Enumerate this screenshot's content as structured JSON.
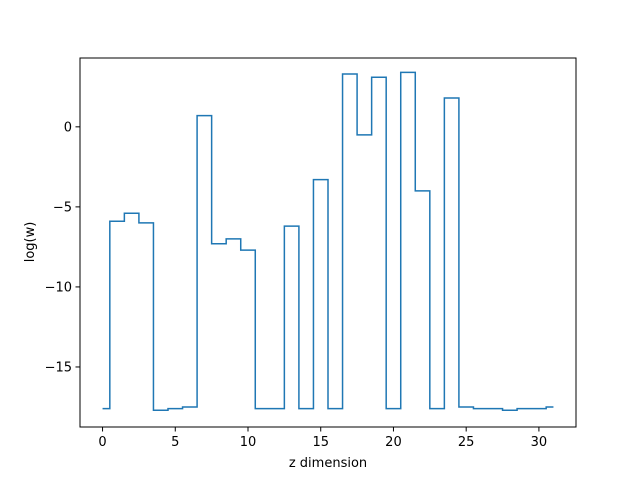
{
  "chart_data": {
    "type": "line",
    "drawstyle": "steps-mid",
    "xlabel": "z dimension",
    "ylabel": "log(w)",
    "xlim": [
      -1.55,
      32.55
    ],
    "ylim": [
      -18.75,
      4.3
    ],
    "x_ticks": [
      0,
      5,
      10,
      15,
      20,
      25,
      30
    ],
    "y_ticks": [
      -15,
      -10,
      -5,
      0
    ],
    "x_tick_labels": [
      "0",
      "5",
      "10",
      "15",
      "20",
      "25",
      "30"
    ],
    "y_tick_labels": [
      "−15",
      "−10",
      "−5",
      "0"
    ],
    "grid": false,
    "series": [
      {
        "color": "#1f77b4",
        "x": [
          0,
          1,
          2,
          3,
          4,
          5,
          6,
          7,
          8,
          9,
          10,
          11,
          12,
          13,
          14,
          15,
          16,
          17,
          18,
          19,
          20,
          21,
          22,
          23,
          24,
          25,
          26,
          27,
          28,
          29,
          30,
          31
        ],
        "y": [
          -17.6,
          -5.9,
          -5.4,
          -6.0,
          -17.7,
          -17.6,
          -17.5,
          0.7,
          -7.3,
          -7.0,
          -7.7,
          -17.6,
          -17.6,
          -6.2,
          -17.6,
          -3.3,
          -17.6,
          3.3,
          -0.5,
          3.1,
          -17.6,
          3.4,
          -4.0,
          -17.6,
          1.8,
          -17.5,
          -17.6,
          -17.6,
          -17.7,
          -17.6,
          -17.6,
          -17.5
        ]
      }
    ]
  }
}
